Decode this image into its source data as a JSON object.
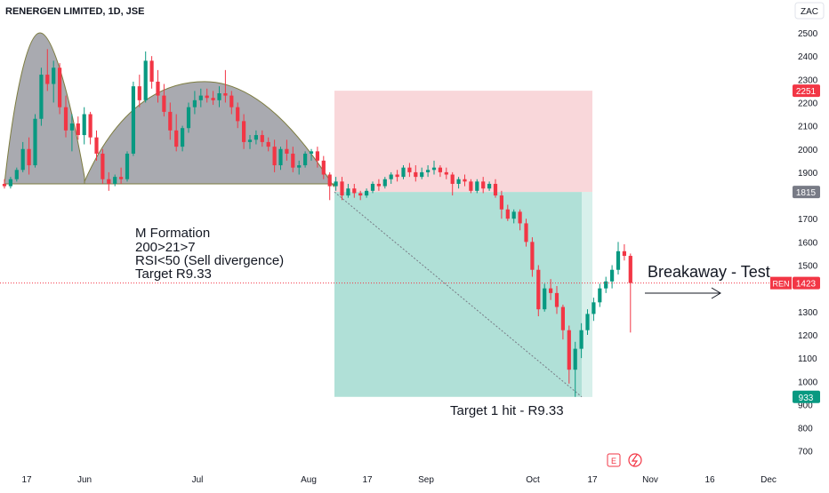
{
  "header": {
    "title": "RENERGEN LIMITED, 1D, JSE",
    "currency_button": "ZAC"
  },
  "price_badges": [
    {
      "label": "",
      "value": "2251",
      "color": "#f23645"
    },
    {
      "label": "",
      "value": "1815",
      "color": "#787b86"
    },
    {
      "label": "REN",
      "value": "1423",
      "color": "#f23645"
    },
    {
      "label": "",
      "value": "933",
      "color": "#089981"
    }
  ],
  "annotations": {
    "m_formation": [
      "M Formation",
      "200>21>7",
      "RSI<50 (Sell divergence)",
      "Target R9.33"
    ],
    "target_hit": "Target 1 hit - R9.33",
    "breakaway": "Breakaway - Test"
  },
  "bottom_icons": [
    "E",
    "flash"
  ],
  "colors": {
    "up": "#089981",
    "down": "#f23645",
    "stop_zone": "#f8d0d3",
    "profit_zone": "#a7ddd3",
    "formation_fill": "#a9aab0"
  },
  "chart_data": {
    "type": "candlestick",
    "title": "RENERGEN LIMITED, 1D, JSE",
    "xlabel": "",
    "ylabel": "",
    "ylim": [
      600,
      2600
    ],
    "y_ticks": [
      2500,
      2400,
      2300,
      2200,
      2100,
      2000,
      1900,
      1700,
      1600,
      1500,
      1300,
      1200,
      1100,
      1000,
      900,
      800,
      700
    ],
    "x_ticks": [
      "17",
      "Jun",
      "Jul",
      "Aug",
      "17",
      "Sep",
      "Oct",
      "17",
      "Nov",
      "16",
      "Dec"
    ],
    "last_price": 1423,
    "series": [
      {
        "candles_ohlc": [
          [
            1850,
            1870,
            1830,
            1840
          ],
          [
            1840,
            1880,
            1830,
            1870
          ],
          [
            1870,
            1920,
            1860,
            1910
          ],
          [
            1910,
            2030,
            1900,
            2000
          ],
          [
            2000,
            2050,
            1890,
            1930
          ],
          [
            1930,
            2150,
            1920,
            2130
          ],
          [
            2130,
            2350,
            2100,
            2320
          ],
          [
            2320,
            2430,
            2250,
            2280
          ],
          [
            2280,
            2380,
            2200,
            2350
          ],
          [
            2350,
            2370,
            2150,
            2180
          ],
          [
            2180,
            2230,
            2050,
            2080
          ],
          [
            2080,
            2150,
            1990,
            2110
          ],
          [
            2110,
            2140,
            2040,
            2060
          ],
          [
            2060,
            2180,
            2020,
            2150
          ],
          [
            2150,
            2160,
            2020,
            2050
          ],
          [
            2050,
            2080,
            1950,
            1980
          ],
          [
            1980,
            2000,
            1850,
            1870
          ],
          [
            1870,
            1900,
            1820,
            1850
          ],
          [
            1850,
            1890,
            1840,
            1880
          ],
          [
            1880,
            1920,
            1850,
            1870
          ],
          [
            1870,
            1990,
            1860,
            1980
          ],
          [
            1980,
            2290,
            1970,
            2270
          ],
          [
            2270,
            2320,
            2180,
            2210
          ],
          [
            2210,
            2420,
            2200,
            2380
          ],
          [
            2380,
            2400,
            2260,
            2290
          ],
          [
            2290,
            2340,
            2200,
            2230
          ],
          [
            2230,
            2280,
            2140,
            2160
          ],
          [
            2160,
            2200,
            2040,
            2080
          ],
          [
            2080,
            2150,
            1990,
            2010
          ],
          [
            2010,
            2100,
            1990,
            2090
          ],
          [
            2090,
            2200,
            2070,
            2180
          ],
          [
            2180,
            2250,
            2150,
            2210
          ],
          [
            2210,
            2260,
            2180,
            2230
          ],
          [
            2230,
            2260,
            2200,
            2220
          ],
          [
            2220,
            2250,
            2190,
            2210
          ],
          [
            2210,
            2270,
            2180,
            2240
          ],
          [
            2240,
            2340,
            2200,
            2230
          ],
          [
            2230,
            2250,
            2150,
            2180
          ],
          [
            2180,
            2200,
            2090,
            2120
          ],
          [
            2120,
            2150,
            2000,
            2030
          ],
          [
            2030,
            2060,
            2000,
            2040
          ],
          [
            2040,
            2080,
            2020,
            2060
          ],
          [
            2060,
            2080,
            2010,
            2030
          ],
          [
            2030,
            2050,
            1990,
            2010
          ],
          [
            2010,
            2040,
            1900,
            1930
          ],
          [
            1930,
            2010,
            1910,
            2000
          ],
          [
            2000,
            2040,
            1950,
            1980
          ],
          [
            1980,
            2010,
            1900,
            1920
          ],
          [
            1920,
            1950,
            1890,
            1930
          ],
          [
            1930,
            1990,
            1920,
            1980
          ],
          [
            1980,
            2000,
            1950,
            1990
          ],
          [
            1990,
            2010,
            1920,
            1950
          ],
          [
            1950,
            1970,
            1870,
            1890
          ],
          [
            1890,
            1900,
            1780,
            1840
          ],
          [
            1840,
            1880,
            1820,
            1860
          ],
          [
            1860,
            1880,
            1780,
            1800
          ],
          [
            1800,
            1850,
            1790,
            1830
          ],
          [
            1830,
            1850,
            1790,
            1810
          ],
          [
            1810,
            1820,
            1780,
            1800
          ],
          [
            1800,
            1830,
            1790,
            1820
          ],
          [
            1820,
            1860,
            1810,
            1850
          ],
          [
            1850,
            1870,
            1820,
            1840
          ],
          [
            1840,
            1880,
            1830,
            1870
          ],
          [
            1870,
            1900,
            1850,
            1890
          ],
          [
            1890,
            1910,
            1860,
            1880
          ],
          [
            1880,
            1930,
            1870,
            1920
          ],
          [
            1920,
            1940,
            1880,
            1900
          ],
          [
            1900,
            1930,
            1860,
            1880
          ],
          [
            1880,
            1920,
            1870,
            1900
          ],
          [
            1900,
            1930,
            1880,
            1910
          ],
          [
            1910,
            1950,
            1890,
            1920
          ],
          [
            1920,
            1930,
            1880,
            1900
          ],
          [
            1900,
            1920,
            1870,
            1890
          ],
          [
            1890,
            1900,
            1800,
            1850
          ],
          [
            1850,
            1880,
            1830,
            1870
          ],
          [
            1870,
            1890,
            1840,
            1860
          ],
          [
            1860,
            1870,
            1810,
            1820
          ],
          [
            1820,
            1870,
            1810,
            1860
          ],
          [
            1860,
            1880,
            1810,
            1830
          ],
          [
            1830,
            1860,
            1820,
            1850
          ],
          [
            1850,
            1870,
            1790,
            1800
          ],
          [
            1800,
            1820,
            1700,
            1740
          ],
          [
            1740,
            1760,
            1690,
            1700
          ],
          [
            1700,
            1740,
            1680,
            1730
          ],
          [
            1730,
            1740,
            1650,
            1680
          ],
          [
            1680,
            1700,
            1580,
            1600
          ],
          [
            1600,
            1620,
            1450,
            1480
          ],
          [
            1480,
            1500,
            1280,
            1310
          ],
          [
            1310,
            1420,
            1300,
            1400
          ],
          [
            1400,
            1440,
            1350,
            1380
          ],
          [
            1380,
            1410,
            1290,
            1320
          ],
          [
            1320,
            1330,
            1180,
            1220
          ],
          [
            1220,
            1240,
            990,
            1050
          ],
          [
            1050,
            1170,
            933,
            1140
          ],
          [
            1140,
            1250,
            1100,
            1220
          ],
          [
            1220,
            1310,
            1200,
            1290
          ],
          [
            1290,
            1360,
            1260,
            1340
          ],
          [
            1340,
            1420,
            1320,
            1400
          ],
          [
            1400,
            1450,
            1380,
            1430
          ],
          [
            1430,
            1500,
            1400,
            1480
          ],
          [
            1480,
            1600,
            1460,
            1560
          ],
          [
            1560,
            1590,
            1520,
            1540
          ],
          [
            1540,
            1550,
            1210,
            1423
          ]
        ]
      }
    ],
    "position": {
      "entry": 1815,
      "stop": 2251,
      "target": 933
    }
  }
}
